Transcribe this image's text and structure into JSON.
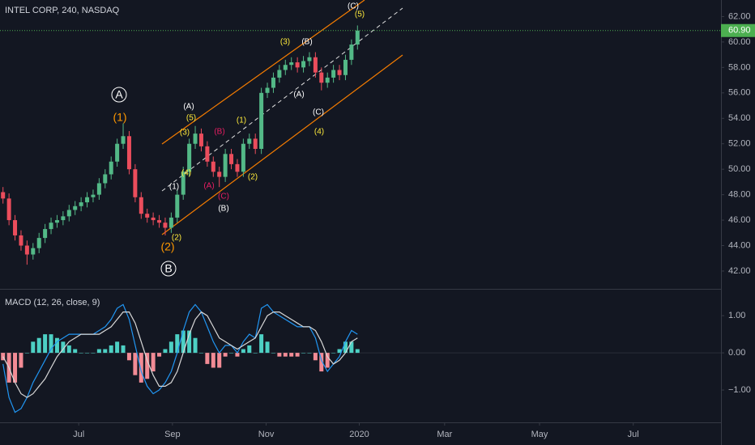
{
  "chart_data": [
    {
      "type": "candlestick",
      "title": "INTEL CORP, 240, NASDAQ",
      "up_color": "#53b987",
      "down_color": "#eb4d5c",
      "open": [
        48.2,
        47.7,
        46.0,
        44.8,
        44.0,
        43.3,
        43.8,
        44.6,
        45.3,
        45.8,
        46.0,
        46.3,
        46.8,
        47.1,
        47.4,
        47.8,
        48.0,
        48.9,
        49.6,
        50.6,
        52.0,
        52.6,
        50.0,
        47.8,
        46.5,
        46.2,
        46.0,
        45.8,
        45.4,
        46.2,
        48.0,
        49.8,
        52.0,
        52.8,
        51.8,
        50.6,
        49.8,
        49.4,
        51.2,
        50.4,
        49.8,
        52.0,
        52.4,
        51.6,
        56.0,
        56.4,
        57.2,
        57.8,
        58.2,
        58.4,
        58.0,
        58.5,
        58.8,
        57.6,
        56.8,
        57.2,
        57.8,
        57.4,
        58.6,
        59.8
      ],
      "high": [
        48.6,
        48.1,
        46.4,
        45.2,
        44.4,
        44.2,
        45.0,
        45.7,
        46.2,
        46.4,
        46.7,
        47.2,
        47.5,
        47.8,
        48.2,
        48.4,
        49.3,
        50.0,
        51.0,
        52.4,
        53.6,
        53.0,
        50.4,
        48.2,
        46.9,
        46.6,
        46.4,
        46.2,
        46.6,
        48.4,
        50.2,
        52.4,
        53.4,
        53.2,
        52.2,
        51.0,
        50.2,
        51.6,
        51.6,
        50.8,
        52.4,
        52.8,
        52.8,
        56.4,
        56.8,
        57.6,
        58.2,
        58.6,
        58.8,
        58.8,
        58.9,
        59.2,
        59.2,
        58.0,
        57.6,
        58.2,
        58.2,
        59.0,
        60.2,
        61.3
      ],
      "low": [
        47.3,
        45.6,
        44.4,
        43.6,
        42.5,
        42.9,
        43.4,
        44.2,
        44.9,
        45.4,
        45.6,
        45.9,
        46.4,
        46.7,
        47.0,
        47.4,
        47.6,
        48.5,
        49.2,
        50.2,
        51.6,
        49.6,
        47.4,
        46.1,
        45.8,
        45.6,
        45.4,
        44.8,
        45.0,
        45.8,
        47.6,
        49.4,
        51.6,
        51.4,
        50.2,
        49.4,
        48.6,
        49.0,
        50.0,
        49.4,
        49.4,
        51.6,
        51.2,
        51.2,
        55.6,
        56.0,
        56.8,
        57.4,
        57.8,
        57.6,
        57.6,
        58.1,
        57.2,
        56.2,
        56.4,
        56.8,
        57.0,
        57.0,
        58.2,
        59.4
      ],
      "close": [
        47.7,
        46.0,
        44.8,
        44.0,
        43.3,
        43.8,
        44.6,
        45.3,
        45.8,
        46.0,
        46.3,
        46.8,
        47.1,
        47.4,
        47.8,
        48.0,
        48.9,
        49.6,
        50.6,
        52.0,
        52.6,
        50.0,
        47.8,
        46.5,
        46.2,
        46.0,
        45.8,
        45.4,
        46.2,
        48.0,
        49.8,
        52.0,
        52.8,
        51.8,
        50.6,
        49.8,
        49.4,
        51.2,
        50.4,
        49.8,
        52.0,
        52.4,
        51.6,
        56.0,
        56.4,
        57.2,
        57.8,
        58.2,
        58.4,
        58.0,
        58.5,
        58.8,
        57.6,
        56.8,
        57.2,
        57.8,
        57.4,
        58.6,
        59.8,
        60.9
      ],
      "last_price": {
        "value": 60.9,
        "label": "60.90",
        "color": "#4caf50"
      },
      "xlim": [
        0,
        120
      ],
      "xticks": [
        {
          "value": 13.1,
          "label": "Jul"
        },
        {
          "value": 28.7,
          "label": "Sep"
        },
        {
          "value": 44.3,
          "label": "Nov"
        },
        {
          "value": 59.8,
          "label": "2020"
        },
        {
          "value": 74.0,
          "label": "Mar"
        },
        {
          "value": 89.8,
          "label": "May"
        },
        {
          "value": 105.4,
          "label": "Jul"
        }
      ],
      "ylim": [
        40.6,
        63.3
      ],
      "yticks": [
        {
          "value": 42,
          "label": "42.00"
        },
        {
          "value": 44,
          "label": "44.00"
        },
        {
          "value": 46,
          "label": "46.00"
        },
        {
          "value": 48,
          "label": "48.00"
        },
        {
          "value": 50,
          "label": "50.00"
        },
        {
          "value": 52,
          "label": "52.00"
        },
        {
          "value": 54,
          "label": "54.00"
        },
        {
          "value": 56,
          "label": "56.00"
        },
        {
          "value": 58,
          "label": "58.00"
        },
        {
          "value": 60,
          "label": "60.00"
        },
        {
          "value": 62,
          "label": "62.00"
        }
      ],
      "annotations": [
        {
          "text": "A",
          "color": "#ffffff"
        },
        {
          "text": "(1)",
          "color": "#ff9800"
        },
        {
          "text": "(2)",
          "color": "#ff9800"
        },
        {
          "text": "B",
          "color": "#ffffff"
        },
        {
          "text": "(2)",
          "color": "#ffeb3b"
        },
        {
          "text": "(1)",
          "color": "#ffffff"
        },
        {
          "text": "(3)",
          "color": "#ffeb3b"
        },
        {
          "text": "(4)",
          "color": "#ffeb3b"
        },
        {
          "text": "(A)",
          "color": "#ffffff"
        },
        {
          "text": "(5)",
          "color": "#ffeb3b"
        },
        {
          "text": "(B)",
          "color": "#e91e63"
        },
        {
          "text": "(A)",
          "color": "#e91e63"
        },
        {
          "text": "(C)",
          "color": "#e91e63"
        },
        {
          "text": "(B)",
          "color": "#ffffff"
        },
        {
          "text": "(1)",
          "color": "#ffeb3b"
        },
        {
          "text": "(2)",
          "color": "#ffeb3b"
        },
        {
          "text": "(3)",
          "color": "#ffeb3b"
        },
        {
          "text": "(B)",
          "color": "#ffffff"
        },
        {
          "text": "(A)",
          "color": "#ffffff"
        },
        {
          "text": "(C)",
          "color": "#ffffff"
        },
        {
          "text": "(4)",
          "color": "#ffeb3b"
        },
        {
          "text": "(C)",
          "color": "#ffffff"
        },
        {
          "text": "(5)",
          "color": "#ffeb3b"
        }
      ]
    },
    {
      "type": "macd",
      "title": "MACD (12, 26, close, 9)",
      "y2lim": [
        -1.87,
        1.7
      ],
      "y2ticks": [
        {
          "value": 1,
          "label": "1.00"
        },
        {
          "value": 0,
          "label": "0.00"
        },
        {
          "value": -1,
          "label": "−1.00"
        }
      ],
      "histogram": {
        "pos_color": "#4dd0c4",
        "neg_color": "#f28b95",
        "values": [
          -0.2,
          -0.8,
          -0.8,
          -0.4,
          0.0,
          0.3,
          0.4,
          0.5,
          0.5,
          0.4,
          0.3,
          0.2,
          0.1,
          0.0,
          0.0,
          0.0,
          0.1,
          0.1,
          0.2,
          0.3,
          0.2,
          -0.2,
          -0.6,
          -0.8,
          -0.7,
          -0.5,
          -0.1,
          0.1,
          0.3,
          0.5,
          0.6,
          0.6,
          0.4,
          0.0,
          -0.3,
          -0.4,
          -0.4,
          -0.1,
          0.0,
          -0.1,
          0.1,
          0.2,
          0.0,
          0.5,
          0.3,
          0.0,
          -0.1,
          -0.1,
          -0.1,
          -0.1,
          0.0,
          0.0,
          -0.2,
          -0.5,
          -0.4,
          0.0,
          0.1,
          0.3,
          0.3,
          0.1
        ]
      },
      "series": [
        {
          "color": "#2196f3",
          "values": [
            -0.3,
            -1.2,
            -1.6,
            -1.5,
            -1.2,
            -0.8,
            -0.5,
            -0.2,
            0.1,
            0.3,
            0.4,
            0.5,
            0.5,
            0.5,
            0.5,
            0.5,
            0.6,
            0.7,
            0.9,
            1.2,
            1.3,
            0.9,
            0.2,
            -0.5,
            -0.9,
            -1.1,
            -1.0,
            -0.8,
            -0.5,
            0.0,
            0.6,
            1.1,
            1.3,
            1.1,
            0.7,
            0.3,
            0.0,
            0.2,
            0.2,
            0.0,
            0.3,
            0.5,
            0.4,
            1.2,
            1.3,
            1.1,
            1.0,
            0.9,
            0.8,
            0.7,
            0.7,
            0.7,
            0.4,
            -0.2,
            -0.5,
            -0.3,
            -0.1,
            0.3,
            0.6,
            0.5
          ]
        },
        {
          "color": "#d8d8d8",
          "values": [
            -0.1,
            -0.4,
            -0.8,
            -1.1,
            -1.2,
            -1.1,
            -0.9,
            -0.7,
            -0.4,
            -0.1,
            0.1,
            0.3,
            0.4,
            0.5,
            0.5,
            0.5,
            0.5,
            0.6,
            0.7,
            0.9,
            1.1,
            1.1,
            0.8,
            0.3,
            -0.2,
            -0.6,
            -0.9,
            -0.9,
            -0.8,
            -0.5,
            0.0,
            0.5,
            0.9,
            1.1,
            1.0,
            0.7,
            0.4,
            0.3,
            0.2,
            0.1,
            0.2,
            0.3,
            0.4,
            0.7,
            1.0,
            1.1,
            1.1,
            1.0,
            0.9,
            0.8,
            0.7,
            0.7,
            0.6,
            0.3,
            -0.1,
            -0.3,
            -0.2,
            0.0,
            0.3,
            0.4
          ]
        }
      ]
    }
  ]
}
